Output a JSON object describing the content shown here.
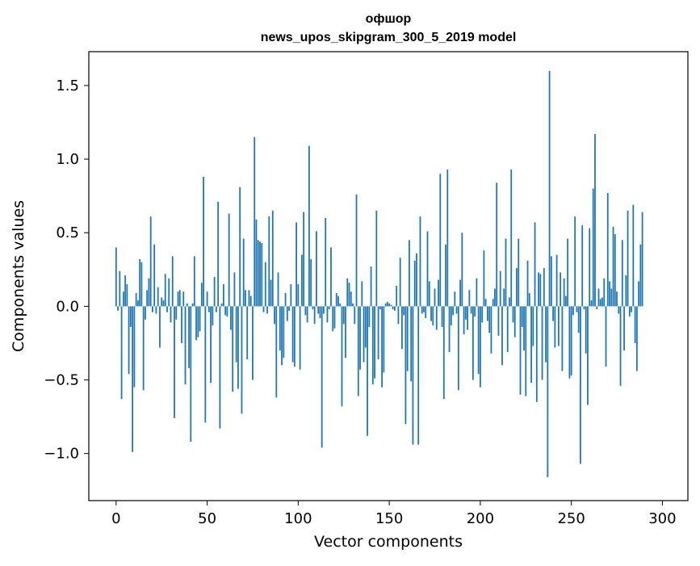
{
  "chart_data": {
    "type": "bar",
    "title": "офшор",
    "subtitle": "news_upos_skipgram_300_5_2019 model",
    "xlabel": "Vector components",
    "ylabel": "Components values",
    "xlim": [
      -15,
      314
    ],
    "ylim": [
      -1.32,
      1.73
    ],
    "xticks": [
      0,
      50,
      100,
      150,
      200,
      250,
      300
    ],
    "yticks": [
      -1.0,
      -0.5,
      0.0,
      0.5,
      1.0,
      1.5
    ],
    "ytick_labels": [
      "−1.0",
      "−0.5",
      "0.0",
      "0.5",
      "1.0",
      "1.5"
    ],
    "xtick_labels": [
      "0",
      "50",
      "100",
      "150",
      "200",
      "250",
      "300"
    ],
    "bar_color": "#1f77b4",
    "grid": false,
    "legend": "none",
    "values": [
      0.4,
      -0.03,
      0.24,
      -0.63,
      0.1,
      0.21,
      0.15,
      -0.46,
      -0.14,
      -0.99,
      -0.55,
      0.09,
      0.04,
      0.32,
      0.3,
      -0.57,
      -0.09,
      0.11,
      0.19,
      0.61,
      -0.04,
      0.42,
      -0.05,
      0.13,
      -0.28,
      0.06,
      0.04,
      0.22,
      -0.04,
      0.19,
      -0.11,
      0.34,
      -0.76,
      -0.09,
      0.1,
      0.11,
      -0.25,
      0.1,
      -0.53,
      0.02,
      -0.42,
      -0.92,
      0.02,
      0.34,
      -0.23,
      -0.21,
      -0.17,
      0.16,
      0.88,
      -0.79,
      0.1,
      -0.04,
      -0.52,
      -0.13,
      0.2,
      -0.04,
      0.71,
      -0.83,
      0.02,
      0.15,
      -0.06,
      -0.07,
      0.63,
      -0.16,
      -0.58,
      0.23,
      -0.38,
      -0.56,
      0.81,
      -0.73,
      0.46,
      0.11,
      -0.36,
      0.11,
      0.07,
      -0.5,
      1.15,
      0.59,
      0.45,
      0.44,
      0.43,
      -0.04,
      0.3,
      -0.05,
      0.61,
      0.18,
      0.65,
      -0.12,
      -0.62,
      0.23,
      -0.3,
      -0.4,
      -0.35,
      0.09,
      -0.1,
      -0.03,
      0.15,
      -0.38,
      -0.41,
      0.57,
      0.15,
      -0.43,
      0.35,
      0.64,
      -0.06,
      -0.11,
      1.09,
      0.32,
      -0.02,
      -0.12,
      0.51,
      -0.05,
      -0.08,
      -0.96,
      -0.05,
      0.6,
      -0.11,
      -0.02,
      0.4,
      -0.17,
      -0.15,
      0.09,
      0.07,
      0.02,
      -0.68,
      -0.12,
      -0.35,
      0.19,
      0.16,
      0.1,
      0.02,
      -0.12,
      0.76,
      -0.61,
      -0.43,
      0.17,
      -0.38,
      -0.28,
      -0.88,
      -0.14,
      0.27,
      -0.53,
      -0.49,
      0.65,
      -0.36,
      -0.02,
      -0.55,
      -0.45,
      0.02,
      0.03,
      0.02,
      0.01,
      -0.02,
      -0.03,
      0.14,
      -0.12,
      0.33,
      -0.29,
      -0.06,
      -0.8,
      -0.44,
      0.45,
      -0.51,
      -0.94,
      0.31,
      0.36,
      -0.94,
      0.61,
      -0.05,
      -0.04,
      -0.08,
      0.51,
      0.17,
      -0.1,
      -0.13,
      0.12,
      -0.16,
      0.18,
      0.9,
      -0.14,
      -0.63,
      0.42,
      0.93,
      -0.31,
      -0.13,
      -0.06,
      0.1,
      -0.05,
      -0.57,
      0.18,
      0.5,
      -0.19,
      -0.09,
      -0.16,
      0.11,
      -0.05,
      -0.5,
      -0.07,
      0.19,
      -0.46,
      -0.55,
      -0.11,
      0.38,
      0.05,
      -0.1,
      -0.18,
      -0.32,
      0.05,
      0.12,
      0.84,
      -0.2,
      0.24,
      -0.4,
      0.12,
      0.46,
      -0.31,
      0.06,
      0.93,
      -0.11,
      -0.21,
      0.26,
      0.46,
      -0.6,
      -0.14,
      -0.3,
      -0.61,
      0.31,
      0.09,
      -0.52,
      -0.27,
      0.57,
      -0.65,
      0.23,
      0.22,
      -0.5,
      0.26,
      -0.38,
      -1.16,
      1.6,
      0.34,
      -0.1,
      -0.28,
      0.35,
      -0.27,
      0.23,
      -0.44,
      0.19,
      0.07,
      0.46,
      -0.49,
      -0.47,
      -0.06,
      0.61,
      -0.04,
      -0.18,
      -1.07,
      0.55,
      -0.02,
      -0.32,
      -0.67,
      0.53,
      0.04,
      0.8,
      1.17,
      -0.02,
      0.12,
      0.05,
      0.06,
      0.19,
      -0.41,
      0.77,
      0.17,
      0.12,
      0.54,
      0.49,
      0.1,
      -0.05,
      -0.54,
      0.45,
      -0.3,
      0.21,
      0.65,
      -0.07,
      -0.04,
      0.69,
      -0.25,
      -0.44,
      0.17,
      0.42,
      0.64
    ]
  }
}
